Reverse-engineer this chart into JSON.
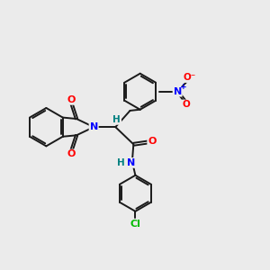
{
  "background_color": "#ebebeb",
  "bond_color": "#1a1a1a",
  "bond_width": 1.4,
  "atom_colors": {
    "N": "#0000ff",
    "O": "#ff0000",
    "Cl": "#00bb00",
    "H": "#008080"
  },
  "figsize": [
    3.0,
    3.0
  ],
  "dpi": 100
}
